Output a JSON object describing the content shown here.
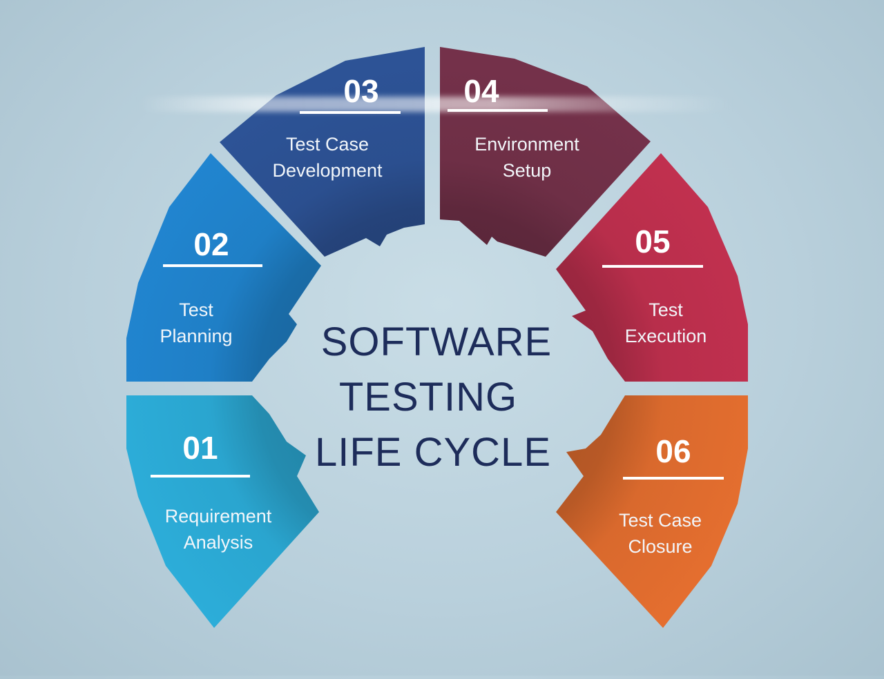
{
  "title": {
    "lines": [
      "SOFTWARE",
      "TESTING",
      "LIFE CYCLE"
    ],
    "color": "#1d2c5a"
  },
  "phases": [
    {
      "number": "01",
      "label_lines": [
        "Requirement",
        "Analysis"
      ],
      "color": "#2aa5cf",
      "icon": ""
    },
    {
      "number": "02",
      "label_lines": [
        "Test",
        "Planning"
      ],
      "color": "#1f7fc6",
      "icon": ""
    },
    {
      "number": "03",
      "label_lines": [
        "Test Case",
        "Development"
      ],
      "color": "#2b4f8f",
      "icon": ""
    },
    {
      "number": "04",
      "label_lines": [
        "Environment",
        "Setup"
      ],
      "color": "#6e2f46",
      "icon": ""
    },
    {
      "number": "05",
      "label_lines": [
        "Test",
        "Execution"
      ],
      "color": "#b82e4b",
      "icon": ""
    },
    {
      "number": "06",
      "label_lines": [
        "Test Case",
        "Closure"
      ],
      "color": "#d9692d",
      "icon": ""
    }
  ]
}
